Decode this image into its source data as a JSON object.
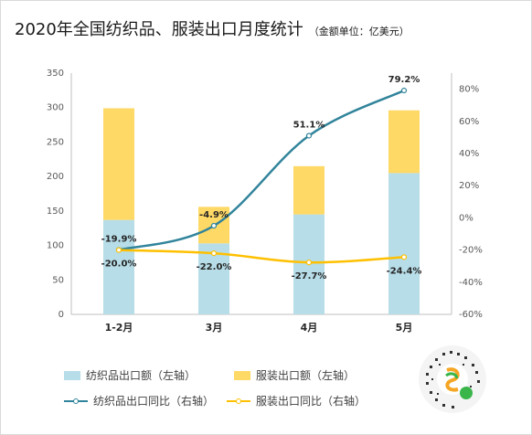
{
  "title": "2020年全国纺织品、服装出口月度统计",
  "subtitle": "（金额单位：亿美元）",
  "chart_data": {
    "type": "bar",
    "stacked": true,
    "categories": [
      "1-2月",
      "3月",
      "4月",
      "5月"
    ],
    "series": [
      {
        "name": "纺织品出口额（左轴）",
        "kind": "bar",
        "axis": "left",
        "color": "#b7dde8",
        "values": [
          137,
          103,
          145,
          205
        ]
      },
      {
        "name": "服装出口额（左轴）",
        "kind": "bar",
        "axis": "left",
        "color": "#ffd966",
        "values": [
          162,
          53,
          70,
          91
        ]
      },
      {
        "name": "纺织品出口同比（右轴）",
        "kind": "line",
        "axis": "right",
        "color": "#31849b",
        "values": [
          -19.9,
          -4.9,
          51.1,
          79.2
        ],
        "labels": [
          "-19.9%",
          "-4.9%",
          "51.1%",
          "79.2%"
        ]
      },
      {
        "name": "服装出口同比（右轴）",
        "kind": "line",
        "axis": "right",
        "color": "#ffc000",
        "values": [
          -20.0,
          -22.0,
          -27.7,
          -24.4
        ],
        "labels": [
          "-20.0%",
          "-22.0%",
          "-27.7%",
          "-24.4%"
        ]
      }
    ],
    "y_left": {
      "min": 0,
      "max": 350,
      "ticks": [
        "0",
        "50",
        "100",
        "150",
        "200",
        "250",
        "300",
        "350"
      ]
    },
    "y_right": {
      "min": -60,
      "max": 90,
      "ticks": [
        "-60%",
        "-40%",
        "-20%",
        "0%",
        "20%",
        "40%",
        "60%",
        "80%"
      ]
    },
    "grid": false,
    "legend_position": "bottom"
  },
  "qr_icon": "qr-code-icon"
}
